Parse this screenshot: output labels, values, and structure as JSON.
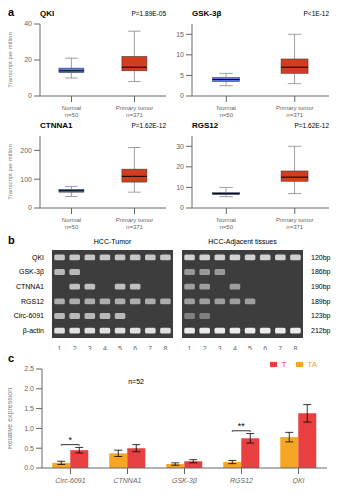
{
  "chart_data": [
    {
      "type": "box",
      "panel_label": "a",
      "title": "QKI",
      "annotations": [
        "P=1.89E-05"
      ],
      "ylabel": "Transcript per million",
      "categories": [
        "Normal\nn=50",
        "Primary tumor\nn=371"
      ],
      "colors": [
        "#4169E1",
        "#CC2200"
      ],
      "boxes": [
        {
          "median": 14,
          "q1": 13,
          "q3": 15.5,
          "whislo": 10,
          "whishi": 21
        },
        {
          "median": 16,
          "q1": 14,
          "q3": 22,
          "whislo": 8,
          "whishi": 36
        }
      ],
      "ylim": [
        0,
        40
      ],
      "yticks": [
        0,
        20,
        40
      ]
    },
    {
      "type": "box",
      "title": "GSK-3β",
      "annotations": [
        "P<1E-12"
      ],
      "categories": [
        "Normal\nn=50",
        "Primary tumor\nn=371"
      ],
      "colors": [
        "#4169E1",
        "#CC2200"
      ],
      "boxes": [
        {
          "median": 4.0,
          "q1": 3.5,
          "q3": 4.5,
          "whislo": 2.5,
          "whishi": 5.5
        },
        {
          "median": 7.0,
          "q1": 5.5,
          "q3": 9.0,
          "whislo": 3.0,
          "whishi": 15.0
        }
      ],
      "ylim": [
        0,
        17.5
      ],
      "yticks": [
        0,
        5,
        10,
        15
      ]
    },
    {
      "type": "box",
      "title": "CTNNA1",
      "annotations": [
        "P=1.62E-12"
      ],
      "ylabel": "Transcript per million",
      "categories": [
        "Normal\nn=50",
        "Primary tumor\nn=371"
      ],
      "colors": [
        "#4169E1",
        "#CC2200"
      ],
      "boxes": [
        {
          "median": 60,
          "q1": 55,
          "q3": 65,
          "whislo": 40,
          "whishi": 75
        },
        {
          "median": 110,
          "q1": 90,
          "q3": 135,
          "whislo": 55,
          "whishi": 210
        }
      ],
      "ylim": [
        0,
        250
      ],
      "yticks": [
        0,
        100,
        200
      ]
    },
    {
      "type": "box",
      "title": "RGS12",
      "annotations": [
        "P=1.62E-12"
      ],
      "categories": [
        "Normal\nn=50",
        "Primary tumor\nn=371"
      ],
      "colors": [
        "#4169E1",
        "#CC2200"
      ],
      "boxes": [
        {
          "median": 7,
          "q1": 6.5,
          "q3": 7.5,
          "whislo": 5.5,
          "whishi": 10
        },
        {
          "median": 15,
          "q1": 13,
          "q3": 18,
          "whislo": 7,
          "whishi": 30
        }
      ],
      "ylim": [
        0,
        35
      ],
      "yticks": [
        0,
        10,
        20,
        30
      ]
    },
    {
      "type": "heatmap",
      "panel_label": "b",
      "rows": [
        "QKI",
        "GSK-3β",
        "CTNNA1",
        "RGS12",
        "Circ-6091",
        "β-actin"
      ],
      "row_labels_right": [
        "120bp",
        "186bp",
        "190bp",
        "189bp",
        "123bp",
        "212bp"
      ],
      "columns": [
        1,
        2,
        3,
        4,
        5,
        6,
        7,
        8
      ],
      "color": "#3d3d3d",
      "panels": [
        {
          "title": "HCC-Tumor",
          "cells": [
            [
              0.78,
              0.78,
              0.78,
              0.78,
              0.78,
              0.78,
              0.78,
              0.78
            ],
            [
              0.72,
              0.72,
              null,
              null,
              null,
              null,
              null,
              null
            ],
            [
              null,
              0.75,
              0.75,
              null,
              0.75,
              0.75,
              null,
              null
            ],
            [
              0.68,
              0.68,
              0.68,
              0.68,
              0.68,
              0.68,
              0.68,
              0.68
            ],
            [
              0.72,
              0.72,
              0.72,
              0.72,
              0.72,
              null,
              null,
              null
            ],
            [
              0.88,
              0.88,
              0.88,
              0.88,
              0.88,
              0.88,
              0.88,
              0.88
            ]
          ]
        },
        {
          "title": "HCC-Adjacent tissues",
          "cells": [
            [
              0.82,
              0.82,
              0.82,
              0.82,
              0.82,
              0.82,
              0.82,
              0.82
            ],
            [
              0.6,
              0.6,
              0.6,
              null,
              null,
              null,
              null,
              null
            ],
            [
              0.62,
              0.62,
              null,
              0.62,
              null,
              null,
              null,
              null
            ],
            [
              0.62,
              0.62,
              0.62,
              0.62,
              0.62,
              null,
              null,
              null
            ],
            [
              0.5,
              0.5,
              null,
              null,
              null,
              null,
              null,
              null
            ],
            [
              0.92,
              0.92,
              0.92,
              0.92,
              0.92,
              0.92,
              0.92,
              0.92
            ]
          ]
        }
      ]
    },
    {
      "type": "bar",
      "panel_label": "c",
      "ylabel": "Relative expression",
      "categories": [
        "Circ-6091",
        "CTNNA1",
        "GSK-3β",
        "RGS12",
        "QKI"
      ],
      "series": [
        {
          "name": "TA",
          "color": "#F5A623",
          "values": [
            0.13,
            0.37,
            0.1,
            0.15,
            0.78
          ],
          "errors": [
            0.04,
            0.08,
            0.03,
            0.04,
            0.12
          ]
        },
        {
          "name": "T",
          "color": "#E84040",
          "values": [
            0.45,
            0.5,
            0.17,
            0.75,
            1.38
          ],
          "errors": [
            0.07,
            0.09,
            0.04,
            0.12,
            0.22
          ]
        }
      ],
      "ylim": [
        0,
        2.5
      ],
      "yticks": [
        {
          "value": 0,
          "label": "0.0"
        },
        0.5,
        {
          "value": 1,
          "label": "1.0"
        },
        1.5,
        {
          "value": 2,
          "label": "2.0"
        },
        2.5
      ],
      "legend": "upper right",
      "annotations": [
        "n=52"
      ],
      "brackets": [
        {
          "category": "Circ-6091",
          "label": "*"
        },
        {
          "category": "RGS12",
          "label": "**"
        }
      ]
    }
  ]
}
